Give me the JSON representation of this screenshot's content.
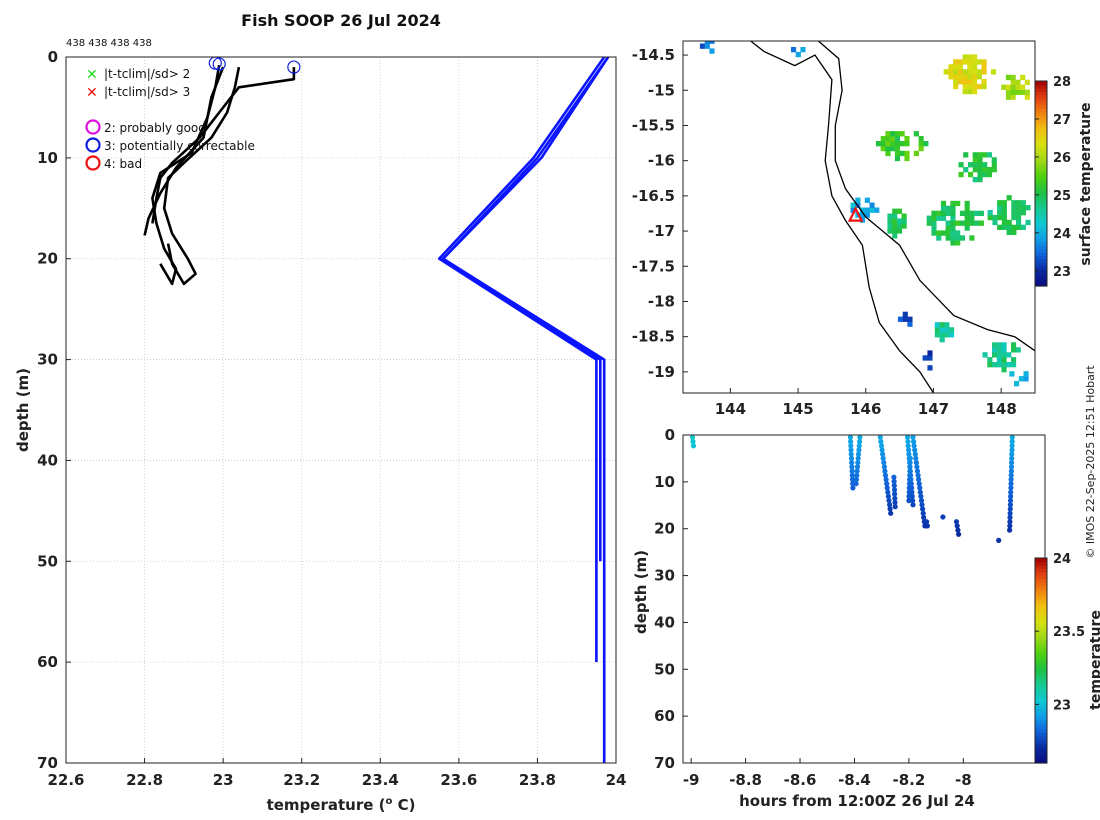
{
  "colors": {
    "profile": "#000000",
    "climatology": "#0a14ff",
    "flag_x_sd2": "#22dd22",
    "flag_x_sd3": "#ee1111",
    "flag_good": "#e010e0",
    "flag_correctable": "#1020e0",
    "flag_bad": "#ee1111",
    "grid": "#c8c8c8"
  },
  "colormap": [
    "#0a0a80",
    "#0a2aa0",
    "#1060d8",
    "#10a0e8",
    "#10c8d0",
    "#18c890",
    "#20c040",
    "#50d010",
    "#a0d818",
    "#d8e010",
    "#f0c010",
    "#f08010",
    "#e04010",
    "#a00000"
  ],
  "chart_data": [
    {
      "id": "profile",
      "type": "line",
      "title": "Fish SOOP 26 Jul 2024",
      "top_note": "438 438 438 438",
      "xlabel": "temperature (",
      "xlabel_sup": "o",
      "xlabel_unit": " C)",
      "ylabel": "depth (m)",
      "xlim": [
        22.6,
        24
      ],
      "ylim": [
        0,
        70
      ],
      "y_reversed": true,
      "xticks": [
        22.6,
        22.8,
        23,
        23.2,
        23.4,
        23.6,
        23.8,
        24
      ],
      "xtick_labels": [
        "22.6",
        "22.8",
        "23",
        "23.2",
        "23.4",
        "23.6",
        "23.8",
        "24"
      ],
      "yticks": [
        0,
        10,
        20,
        30,
        40,
        50,
        60,
        70
      ],
      "ytick_labels": [
        "0",
        "10",
        "20",
        "30",
        "40",
        "50",
        "60",
        "70"
      ],
      "legend": [
        {
          "symbol": "x",
          "color_key": "flag_x_sd2",
          "label": "|t-tclim|/sd> 2"
        },
        {
          "symbol": "x",
          "color_key": "flag_x_sd3",
          "label": "|t-tclim|/sd> 3"
        },
        {
          "symbol": "o",
          "color_key": "flag_good",
          "label": "2: probably good"
        },
        {
          "symbol": "o",
          "color_key": "flag_correctable",
          "label": "3: potentially correctable"
        },
        {
          "symbol": "o",
          "color_key": "flag_bad",
          "label": "4: bad"
        }
      ],
      "series": [
        {
          "name": "profile 1",
          "kind": "profile",
          "points": [
            [
              23.0,
              1.0
            ],
            [
              22.97,
              4
            ],
            [
              22.95,
              8
            ],
            [
              22.88,
              11
            ],
            [
              22.84,
              13.5
            ],
            [
              22.81,
              16
            ],
            [
              22.8,
              17.7
            ]
          ]
        },
        {
          "name": "profile 2",
          "kind": "profile",
          "points": [
            [
              22.99,
              0.8
            ],
            [
              22.98,
              3
            ],
            [
              22.96,
              6
            ],
            [
              22.92,
              9.5
            ],
            [
              22.84,
              11.5
            ],
            [
              22.82,
              14
            ],
            [
              22.83,
              16.5
            ],
            [
              22.85,
              19
            ],
            [
              22.88,
              21
            ],
            [
              22.87,
              22.5
            ],
            [
              22.84,
              20.5
            ]
          ]
        },
        {
          "name": "profile 3",
          "kind": "profile",
          "points": [
            [
              23.04,
              1.0
            ],
            [
              23.03,
              3
            ],
            [
              23.01,
              5.5
            ],
            [
              22.97,
              8
            ],
            [
              22.9,
              10.5
            ],
            [
              22.86,
              12
            ],
            [
              22.85,
              15
            ],
            [
              22.87,
              17.5
            ],
            [
              22.91,
              20
            ],
            [
              22.93,
              21.5
            ],
            [
              22.9,
              22.5
            ],
            [
              22.87,
              20.5
            ],
            [
              22.86,
              18.5
            ]
          ]
        },
        {
          "name": "profile 4",
          "kind": "profile",
          "points": [
            [
              23.18,
              1.0
            ],
            [
              23.18,
              2.2
            ],
            [
              23.04,
              3
            ],
            [
              22.99,
              5.5
            ],
            [
              22.94,
              8
            ],
            [
              22.87,
              10.5
            ],
            [
              22.84,
              12
            ],
            [
              22.83,
              14
            ],
            [
              22.82,
              16.5
            ]
          ]
        },
        {
          "name": "climatology a",
          "kind": "climatology",
          "points": [
            [
              23.97,
              0
            ],
            [
              23.79,
              10
            ],
            [
              23.55,
              20
            ],
            [
              23.95,
              30
            ],
            [
              23.95,
              60
            ]
          ]
        },
        {
          "name": "climatology b",
          "kind": "climatology",
          "points": [
            [
              23.98,
              0
            ],
            [
              23.8,
              10
            ],
            [
              23.56,
              20
            ],
            [
              23.96,
              30
            ],
            [
              23.96,
              50
            ]
          ]
        },
        {
          "name": "climatology c",
          "kind": "climatology",
          "points": [
            [
              23.98,
              0
            ],
            [
              23.81,
              10
            ],
            [
              23.56,
              20
            ],
            [
              23.97,
              30
            ],
            [
              23.97,
              70
            ]
          ]
        }
      ],
      "markers": [
        {
          "flag": "correctable",
          "x": 22.98,
          "y": 0.6
        },
        {
          "flag": "correctable",
          "x": 22.99,
          "y": 0.7
        },
        {
          "flag": "correctable",
          "x": 23.18,
          "y": 1.0
        }
      ]
    },
    {
      "id": "map",
      "type": "heatmap",
      "xlim": [
        143.3,
        148.5
      ],
      "ylim": [
        -19.3,
        -14.3
      ],
      "xticks": [
        144,
        145,
        146,
        147,
        148
      ],
      "xtick_labels": [
        "144",
        "145",
        "146",
        "147",
        "148"
      ],
      "yticks": [
        -14.5,
        -15,
        -15.5,
        -16,
        -16.5,
        -17,
        -17.5,
        -18,
        -18.5,
        -19
      ],
      "ytick_labels": [
        "-14.5",
        "-15",
        "-15.5",
        "-16",
        "-16.5",
        "-17",
        "-17.5",
        "-18",
        "-18.5",
        "-19"
      ],
      "colorbar_label": "surface temperature",
      "clim": [
        22.6,
        28
      ],
      "colorbar_ticks": [
        23,
        24,
        25,
        26,
        27,
        28
      ],
      "colorbar_tick_labels": [
        "23",
        "24",
        "25",
        "26",
        "27",
        "28"
      ],
      "coastline": [
        [
          144.3,
          -14.3
        ],
        [
          144.5,
          -14.45
        ],
        [
          144.95,
          -14.65
        ],
        [
          145.25,
          -14.5
        ],
        [
          145.5,
          -14.85
        ],
        [
          145.45,
          -15.5
        ],
        [
          145.4,
          -16.0
        ],
        [
          145.5,
          -16.5
        ],
        [
          145.7,
          -16.85
        ],
        [
          145.95,
          -17.2
        ],
        [
          146.05,
          -17.8
        ],
        [
          146.2,
          -18.3
        ],
        [
          146.5,
          -18.7
        ],
        [
          146.8,
          -19.0
        ],
        [
          147.0,
          -19.3
        ]
      ],
      "reef_edge": [
        [
          145.3,
          -14.3
        ],
        [
          145.6,
          -14.55
        ],
        [
          145.65,
          -15.0
        ],
        [
          145.55,
          -15.5
        ],
        [
          145.55,
          -16.0
        ],
        [
          145.7,
          -16.4
        ],
        [
          146.0,
          -16.8
        ],
        [
          146.5,
          -17.2
        ],
        [
          146.8,
          -17.7
        ],
        [
          147.3,
          -18.2
        ],
        [
          147.8,
          -18.4
        ],
        [
          148.2,
          -18.5
        ],
        [
          148.5,
          -18.7
        ]
      ],
      "station": {
        "lon": 145.85,
        "lat": -16.78
      },
      "sst_patches": [
        {
          "lon": 147.5,
          "lat": -14.8,
          "w": 0.7,
          "h": 0.5,
          "value": 26.4
        },
        {
          "lon": 148.2,
          "lat": -15.0,
          "w": 0.4,
          "h": 0.4,
          "value": 26.0
        },
        {
          "lon": 146.5,
          "lat": -15.8,
          "w": 0.7,
          "h": 0.4,
          "value": 25.3
        },
        {
          "lon": 147.6,
          "lat": -16.1,
          "w": 0.6,
          "h": 0.4,
          "value": 25.0
        },
        {
          "lon": 147.3,
          "lat": -16.9,
          "w": 0.8,
          "h": 0.6,
          "value": 25.0
        },
        {
          "lon": 148.1,
          "lat": -16.8,
          "w": 0.6,
          "h": 0.5,
          "value": 24.9
        },
        {
          "lon": 146.4,
          "lat": -16.9,
          "w": 0.3,
          "h": 0.4,
          "value": 25.0
        },
        {
          "lon": 147.1,
          "lat": -18.45,
          "w": 0.3,
          "h": 0.25,
          "value": 24.6
        },
        {
          "lon": 148.0,
          "lat": -18.8,
          "w": 0.55,
          "h": 0.4,
          "value": 24.7
        },
        {
          "lon": 148.2,
          "lat": -19.1,
          "w": 0.3,
          "h": 0.2,
          "value": 23.9
        },
        {
          "lon": 145.95,
          "lat": -16.7,
          "w": 0.35,
          "h": 0.35,
          "value": 23.9
        },
        {
          "lon": 143.7,
          "lat": -14.4,
          "w": 0.3,
          "h": 0.15,
          "value": 23.6
        },
        {
          "lon": 144.95,
          "lat": -14.45,
          "w": 0.25,
          "h": 0.15,
          "value": 23.8
        },
        {
          "lon": 146.55,
          "lat": -18.3,
          "w": 0.15,
          "h": 0.25,
          "value": 23.2
        },
        {
          "lon": 146.9,
          "lat": -18.85,
          "w": 0.12,
          "h": 0.25,
          "value": 22.9
        }
      ]
    },
    {
      "id": "timeseries",
      "type": "scatter",
      "xlabel": "hours from 12:00Z 26 Jul 24",
      "ylabel": "depth (m)",
      "xlim": [
        -9.03,
        -7.7
      ],
      "ylim": [
        0,
        70
      ],
      "y_reversed": true,
      "xticks": [
        -9,
        -8.8,
        -8.6,
        -8.4,
        -8.2,
        -8
      ],
      "xtick_labels": [
        "-9",
        "-8.8",
        "-8.6",
        "-8.4",
        "-8.2",
        "-8"
      ],
      "yticks": [
        0,
        10,
        20,
        30,
        40,
        50,
        60,
        70
      ],
      "ytick_labels": [
        "0",
        "10",
        "20",
        "30",
        "40",
        "50",
        "60",
        "70"
      ],
      "colorbar_label": "temperature",
      "clim": [
        22.6,
        24
      ],
      "colorbar_ticks": [
        23,
        23.5,
        24
      ],
      "colorbar_tick_labels": [
        "23",
        "23.5",
        "24"
      ],
      "casts": [
        {
          "x0": -8.995,
          "x1": -8.99,
          "ztop": 0.5,
          "zbot": 3,
          "t_top": 23.05,
          "t_bot": 23.0
        },
        {
          "x0": -8.415,
          "x1": -8.405,
          "ztop": 0.5,
          "zbot": 12,
          "t_top": 22.95,
          "t_bot": 22.8
        },
        {
          "x0": -8.38,
          "x1": -8.395,
          "ztop": 0.5,
          "zbot": 11,
          "t_top": 22.95,
          "t_bot": 22.82
        },
        {
          "x0": -8.305,
          "x1": -8.265,
          "ztop": 0.5,
          "zbot": 17.5,
          "t_top": 22.95,
          "t_bot": 22.72
        },
        {
          "x0": -8.255,
          "x1": -8.25,
          "ztop": 9,
          "zbot": 16,
          "t_top": 22.82,
          "t_bot": 22.74
        },
        {
          "x0": -8.205,
          "x1": -8.185,
          "ztop": 0.5,
          "zbot": 15,
          "t_top": 22.95,
          "t_bot": 22.76
        },
        {
          "x0": -8.195,
          "x1": -8.2,
          "ztop": 5,
          "zbot": 14,
          "t_top": 22.9,
          "t_bot": 22.78
        },
        {
          "x0": -8.185,
          "x1": -8.14,
          "ztop": 0.5,
          "zbot": 20,
          "t_top": 22.92,
          "t_bot": 22.72
        },
        {
          "x0": -8.135,
          "x1": -8.13,
          "ztop": 18.5,
          "zbot": 20,
          "t_top": 22.74,
          "t_bot": 22.72
        },
        {
          "x0": -8.025,
          "x1": -8.015,
          "ztop": 18.5,
          "zbot": 22,
          "t_top": 22.74,
          "t_bot": 22.7
        },
        {
          "x0": -7.82,
          "x1": -7.83,
          "ztop": 0.5,
          "zbot": 20.5,
          "t_top": 22.95,
          "t_bot": 22.72
        }
      ],
      "single_points": [
        {
          "x": -8.075,
          "z": 17.5,
          "t": 22.75
        },
        {
          "x": -7.87,
          "z": 22.5,
          "t": 22.72
        }
      ]
    }
  ],
  "credit": "© IMOS 22-Sep-2025 12:51 Hobart"
}
